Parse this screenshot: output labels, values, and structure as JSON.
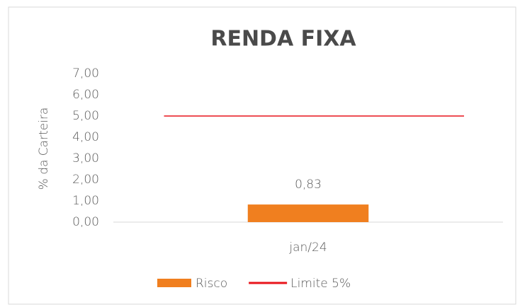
{
  "chart_data": {
    "type": "bar",
    "title": "RENDA FIXA",
    "y_label": "% da Carteira",
    "categories": [
      "jan/24"
    ],
    "series": [
      {
        "name": "Risco",
        "type": "bar",
        "color": "#f07f1f",
        "values": [
          0.83
        ],
        "value_labels": [
          "0,83"
        ]
      },
      {
        "name": "Limite 5%",
        "type": "line",
        "color": "#e8141b",
        "values": [
          5
        ]
      }
    ],
    "ylim": [
      0,
      7
    ],
    "yticks": [
      {
        "value": 0,
        "label": "0,00"
      },
      {
        "value": 1,
        "label": "1,00"
      },
      {
        "value": 2,
        "label": "2,00"
      },
      {
        "value": 3,
        "label": "3,00"
      },
      {
        "value": 4,
        "label": "4,00"
      },
      {
        "value": 5,
        "label": "5,00"
      },
      {
        "value": 6,
        "label": "6,00"
      },
      {
        "value": 7,
        "label": "7,00"
      }
    ],
    "legend": "bottom"
  }
}
